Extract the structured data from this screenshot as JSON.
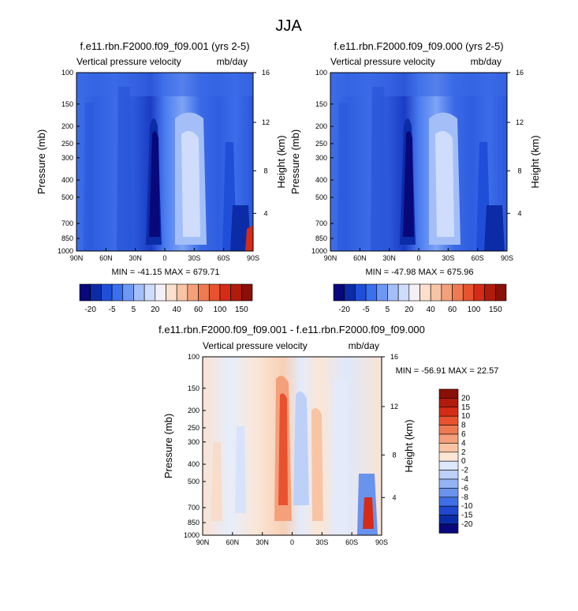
{
  "figure": {
    "title": "JJA"
  },
  "chart_data": [
    {
      "type": "heatmap",
      "title": "f.e11.rbn.F2000.f09_f09.001 (yrs 2-5)",
      "subtitle_left": "Vertical pressure velocity",
      "subtitle_right": "mb/day",
      "ylabel": "Pressure (mb)",
      "ylabel_right": "Height (km)",
      "x_ticks": [
        "90N",
        "60N",
        "30N",
        "0",
        "30S",
        "60S",
        "90S"
      ],
      "y_ticks": [
        "100",
        "150",
        "200",
        "250",
        "300",
        "400",
        "500",
        "700",
        "850",
        "1000"
      ],
      "height_ticks": [
        "16",
        "12",
        "8",
        "4"
      ],
      "ylim": [
        1000,
        100
      ],
      "stats": "MIN = -41.15   MAX = 679.71",
      "colorbar": {
        "labels": [
          "-20",
          "-5",
          "5",
          "20",
          "40",
          "60",
          "100",
          "150"
        ],
        "colors": [
          "#08087a",
          "#0c2ba6",
          "#1f4fd9",
          "#3a6fee",
          "#6f98f5",
          "#a4bff8",
          "#cfdcfb",
          "#f5f0f8",
          "#fbe0cf",
          "#f8c4a4",
          "#f4a07a",
          "#ef7a52",
          "#e8522f",
          "#d42c17",
          "#b01b0c",
          "#8a0f07"
        ]
      }
    },
    {
      "type": "heatmap",
      "title": "f.e11.rbn.F2000.f09_f09.000 (yrs 2-5)",
      "subtitle_left": "Vertical pressure velocity",
      "subtitle_right": "mb/day",
      "ylabel": "Pressure (mb)",
      "ylabel_right": "Height (km)",
      "x_ticks": [
        "90N",
        "60N",
        "30N",
        "0",
        "30S",
        "60S",
        "90S"
      ],
      "y_ticks": [
        "100",
        "150",
        "200",
        "250",
        "300",
        "400",
        "500",
        "700",
        "850",
        "1000"
      ],
      "height_ticks": [
        "16",
        "12",
        "8",
        "4"
      ],
      "ylim": [
        1000,
        100
      ],
      "stats": "MIN = -47.98   MAX = 675.96",
      "colorbar": {
        "labels": [
          "-20",
          "-5",
          "5",
          "20",
          "40",
          "60",
          "100",
          "150"
        ],
        "colors": [
          "#08087a",
          "#0c2ba6",
          "#1f4fd9",
          "#3a6fee",
          "#6f98f5",
          "#a4bff8",
          "#cfdcfb",
          "#f5f0f8",
          "#fbe0cf",
          "#f8c4a4",
          "#f4a07a",
          "#ef7a52",
          "#e8522f",
          "#d42c17",
          "#b01b0c",
          "#8a0f07"
        ]
      }
    },
    {
      "type": "heatmap",
      "title": "f.e11.rbn.F2000.f09_f09.001 - f.e11.rbn.F2000.f09_f09.000",
      "subtitle_left": "Vertical pressure velocity",
      "subtitle_right": "mb/day",
      "ylabel": "Pressure (mb)",
      "ylabel_right": "Height (km)",
      "x_ticks": [
        "90N",
        "60N",
        "30N",
        "0",
        "30S",
        "60S",
        "90S"
      ],
      "y_ticks": [
        "100",
        "150",
        "200",
        "250",
        "300",
        "400",
        "500",
        "700",
        "850",
        "1000"
      ],
      "height_ticks": [
        "16",
        "12",
        "8",
        "4"
      ],
      "ylim": [
        1000,
        100
      ],
      "stats": "MIN = -56.91   MAX = 22.57",
      "colorbar": {
        "labels": [
          "20",
          "15",
          "10",
          "8",
          "6",
          "4",
          "2",
          "0",
          "-2",
          "-4",
          "-6",
          "-8",
          "-10",
          "-15",
          "-20"
        ],
        "colors": [
          "#8a0f07",
          "#b01b0c",
          "#d42c17",
          "#e8522f",
          "#ef7a52",
          "#f4a07a",
          "#f8c4a4",
          "#fbe6d6",
          "#dde8fb",
          "#bcd0f8",
          "#94b3f4",
          "#6a93ee",
          "#3f6fe4",
          "#1f48cf",
          "#0c2ba6",
          "#08087a"
        ]
      }
    }
  ]
}
